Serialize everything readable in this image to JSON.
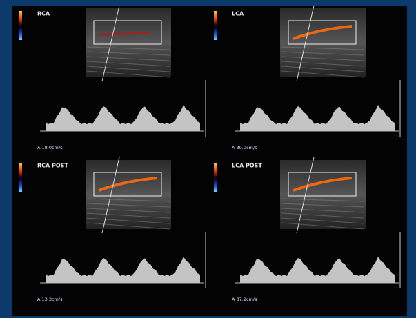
{
  "panels": [
    {
      "label": "RCA",
      "measurement": "A 18.0cm/s"
    },
    {
      "label": "LCA",
      "measurement": "A 30.0cm/s"
    },
    {
      "label": "RCA POST",
      "measurement": "A 13.3cm/s"
    },
    {
      "label": "LCA POST",
      "measurement": "A 37.2cm/s"
    }
  ]
}
